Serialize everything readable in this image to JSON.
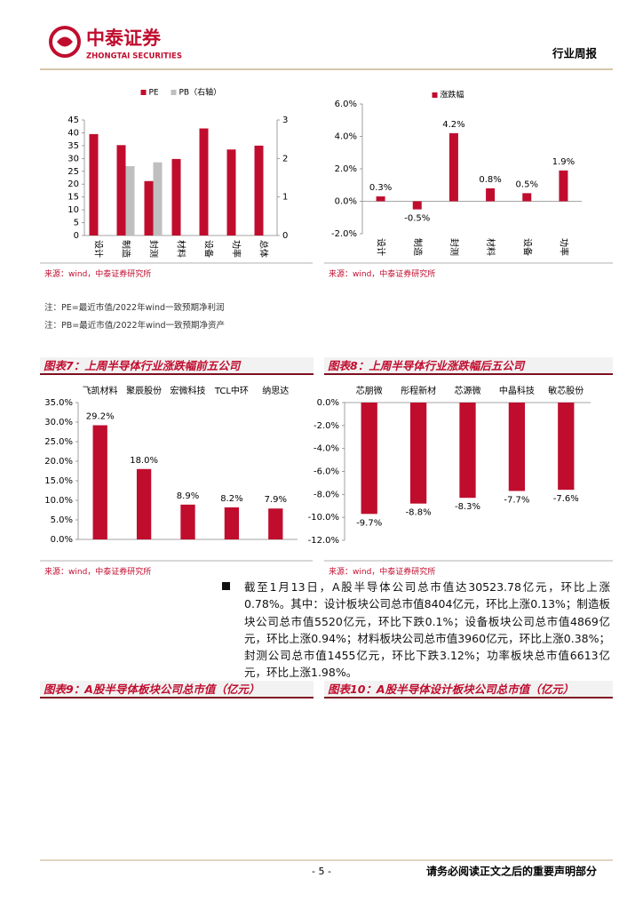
{
  "header": {
    "company": "中泰证券",
    "company_en": "ZHONGTAI SECURITIES",
    "report_type": "行业周报"
  },
  "chart_data": [
    {
      "type": "bar",
      "categories": [
        "设计",
        "制造",
        "封测",
        "材料",
        "设备",
        "功率",
        "总体"
      ],
      "series": [
        {
          "name": "PE",
          "color": "#c00d2e",
          "values": [
            39.5,
            35.2,
            21.2,
            29.8,
            41.7,
            33.5,
            35
          ]
        },
        {
          "name": "PB（右轴）",
          "color": "#bfbfbf",
          "axis": "y2",
          "values": [
            null,
            1.8,
            1.9,
            null,
            null,
            null,
            null
          ]
        }
      ],
      "ylim": [
        0,
        45
      ],
      "yticks": [
        0,
        5,
        10,
        15,
        20,
        25,
        30,
        35,
        40,
        45
      ],
      "y2lim": [
        0,
        3
      ],
      "y2ticks": [
        0,
        1,
        2,
        3
      ],
      "legend": "top",
      "source": "来源：wind，中泰证券研究所"
    },
    {
      "type": "bar",
      "categories": [
        "设计",
        "制造",
        "封测",
        "材料",
        "设备",
        "功率"
      ],
      "series": [
        {
          "name": "涨跌幅",
          "color": "#c00d2e",
          "values": [
            0.3,
            -0.5,
            4.2,
            0.8,
            0.5,
            1.9
          ],
          "value_labels": [
            "0.3%",
            "-0.5%",
            "4.2%",
            "0.8%",
            "0.5%",
            "1.9%"
          ]
        }
      ],
      "ylim": [
        -2,
        6
      ],
      "yticks": [
        {
          "value": -2,
          "label": "-2.0%"
        },
        {
          "value": 0,
          "label": "0.0%"
        },
        {
          "value": 2,
          "label": "2.0%"
        },
        {
          "value": 4,
          "label": "4.0%"
        },
        {
          "value": 6,
          "label": "6.0%"
        }
      ],
      "legend": "top",
      "source": "来源：wind，中泰证券研究所"
    },
    {
      "type": "bar",
      "title": "图表7：上周半导体行业涨跌幅前五公司",
      "categories": [
        "飞凯材料",
        "聚辰股份",
        "宏微科技",
        "TCL中环",
        "纳思达"
      ],
      "values": [
        29.2,
        18.0,
        8.9,
        8.2,
        7.9
      ],
      "value_labels": [
        "29.2%",
        "18.0%",
        "8.9%",
        "8.2%",
        "7.9%"
      ],
      "color": "#c00d2e",
      "ylim": [
        0,
        35
      ],
      "yticks": [
        {
          "value": 0,
          "label": "0.0%"
        },
        {
          "value": 5,
          "label": "5.0%"
        },
        {
          "value": 10,
          "label": "10.0%"
        },
        {
          "value": 15,
          "label": "15.0%"
        },
        {
          "value": 20,
          "label": "20.0%"
        },
        {
          "value": 25,
          "label": "25.0%"
        },
        {
          "value": 30,
          "label": "30.0%"
        },
        {
          "value": 35,
          "label": "35.0%"
        }
      ],
      "source": "来源：wind，中泰证券研究所"
    },
    {
      "type": "bar",
      "title": "图表8：上周半导体行业涨跌幅后五公司",
      "categories": [
        "芯朋微",
        "彤程新材",
        "芯源微",
        "中晶科技",
        "敏芯股份"
      ],
      "values": [
        -9.7,
        -8.8,
        -8.3,
        -7.7,
        -7.6
      ],
      "value_labels": [
        "-9.7%",
        "-8.8%",
        "-8.3%",
        "-7.7%",
        "-7.6%"
      ],
      "color": "#c00d2e",
      "ylim": [
        -12,
        0
      ],
      "yticks": [
        {
          "value": -12,
          "label": "-12.0%"
        },
        {
          "value": -10,
          "label": "-10.0%"
        },
        {
          "value": -8,
          "label": "-8.0%"
        },
        {
          "value": -6,
          "label": "-6.0%"
        },
        {
          "value": -4,
          "label": "-4.0%"
        },
        {
          "value": -2,
          "label": "-2.0%"
        },
        {
          "value": 0,
          "label": "0.0%"
        }
      ],
      "source": "来源：wind，中泰证券研究所"
    }
  ],
  "notes": [
    "注：PE=最近市值/2022年wind一致预期净利润",
    "注：PB=最近市值/2022年wind一致预期净资产"
  ],
  "paragraph": "截至1月13日，A股半导体公司总市值达30523.78亿元，环比上涨0.78%。其中：设计板块公司总市值8404亿元，环比上涨0.13%；制造板块公司总市值5520亿元，环比下跌0.1%；设备板块公司总市值4869亿元，环比上涨0.94%；材料板块公司总市值3960亿元，环比上涨0.38%；封测公司总市值1455亿元，环比下跌3.12%；功率板块总市值6613亿元，环比上涨1.98%。",
  "figures": [
    "图表9：A股半导体板块公司总市值（亿元）",
    "图表10：A股半导体设计板块公司总市值（亿元）"
  ],
  "footer": {
    "page": "- 5 -",
    "disclaimer": "请务必阅读正文之后的重要声明部分"
  }
}
